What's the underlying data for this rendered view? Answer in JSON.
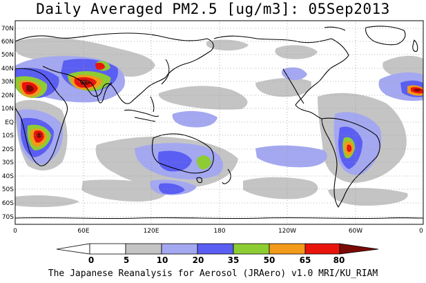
{
  "title": "Daily Averaged PM2.5 [ug/m3]: 05Sep2013",
  "footer": "The Japanese Reanalysis for Aerosol (JRAero) v1.0 MRI/KU_RIAM",
  "map": {
    "type": "global-concentration-map",
    "projection": "equirectangular",
    "lon_range": [
      0,
      360
    ],
    "lat_range": [
      -75,
      75
    ],
    "lat_labels": [
      "70N",
      "60N",
      "50N",
      "40N",
      "30N",
      "20N",
      "10N",
      "EQ",
      "10S",
      "20S",
      "30S",
      "40S",
      "50S",
      "60S",
      "70S"
    ],
    "lon_labels": [
      "0",
      "60E",
      "120E",
      "180",
      "120W",
      "60W",
      "0"
    ],
    "grid": "dotted"
  },
  "colorbar": {
    "levels": [
      "0",
      "5",
      "10",
      "20",
      "35",
      "50",
      "65",
      "80"
    ],
    "colors": {
      "below": "#ffffff",
      "c0_5": "#ffffff",
      "c5_10": "#c4c4c4",
      "c10_20": "#a4a8f0",
      "c20_35": "#5a5ef2",
      "c35_50": "#8dcc32",
      "c50_65": "#f29a1a",
      "c65_80": "#e8140c",
      "above": "#7a0a06"
    }
  }
}
